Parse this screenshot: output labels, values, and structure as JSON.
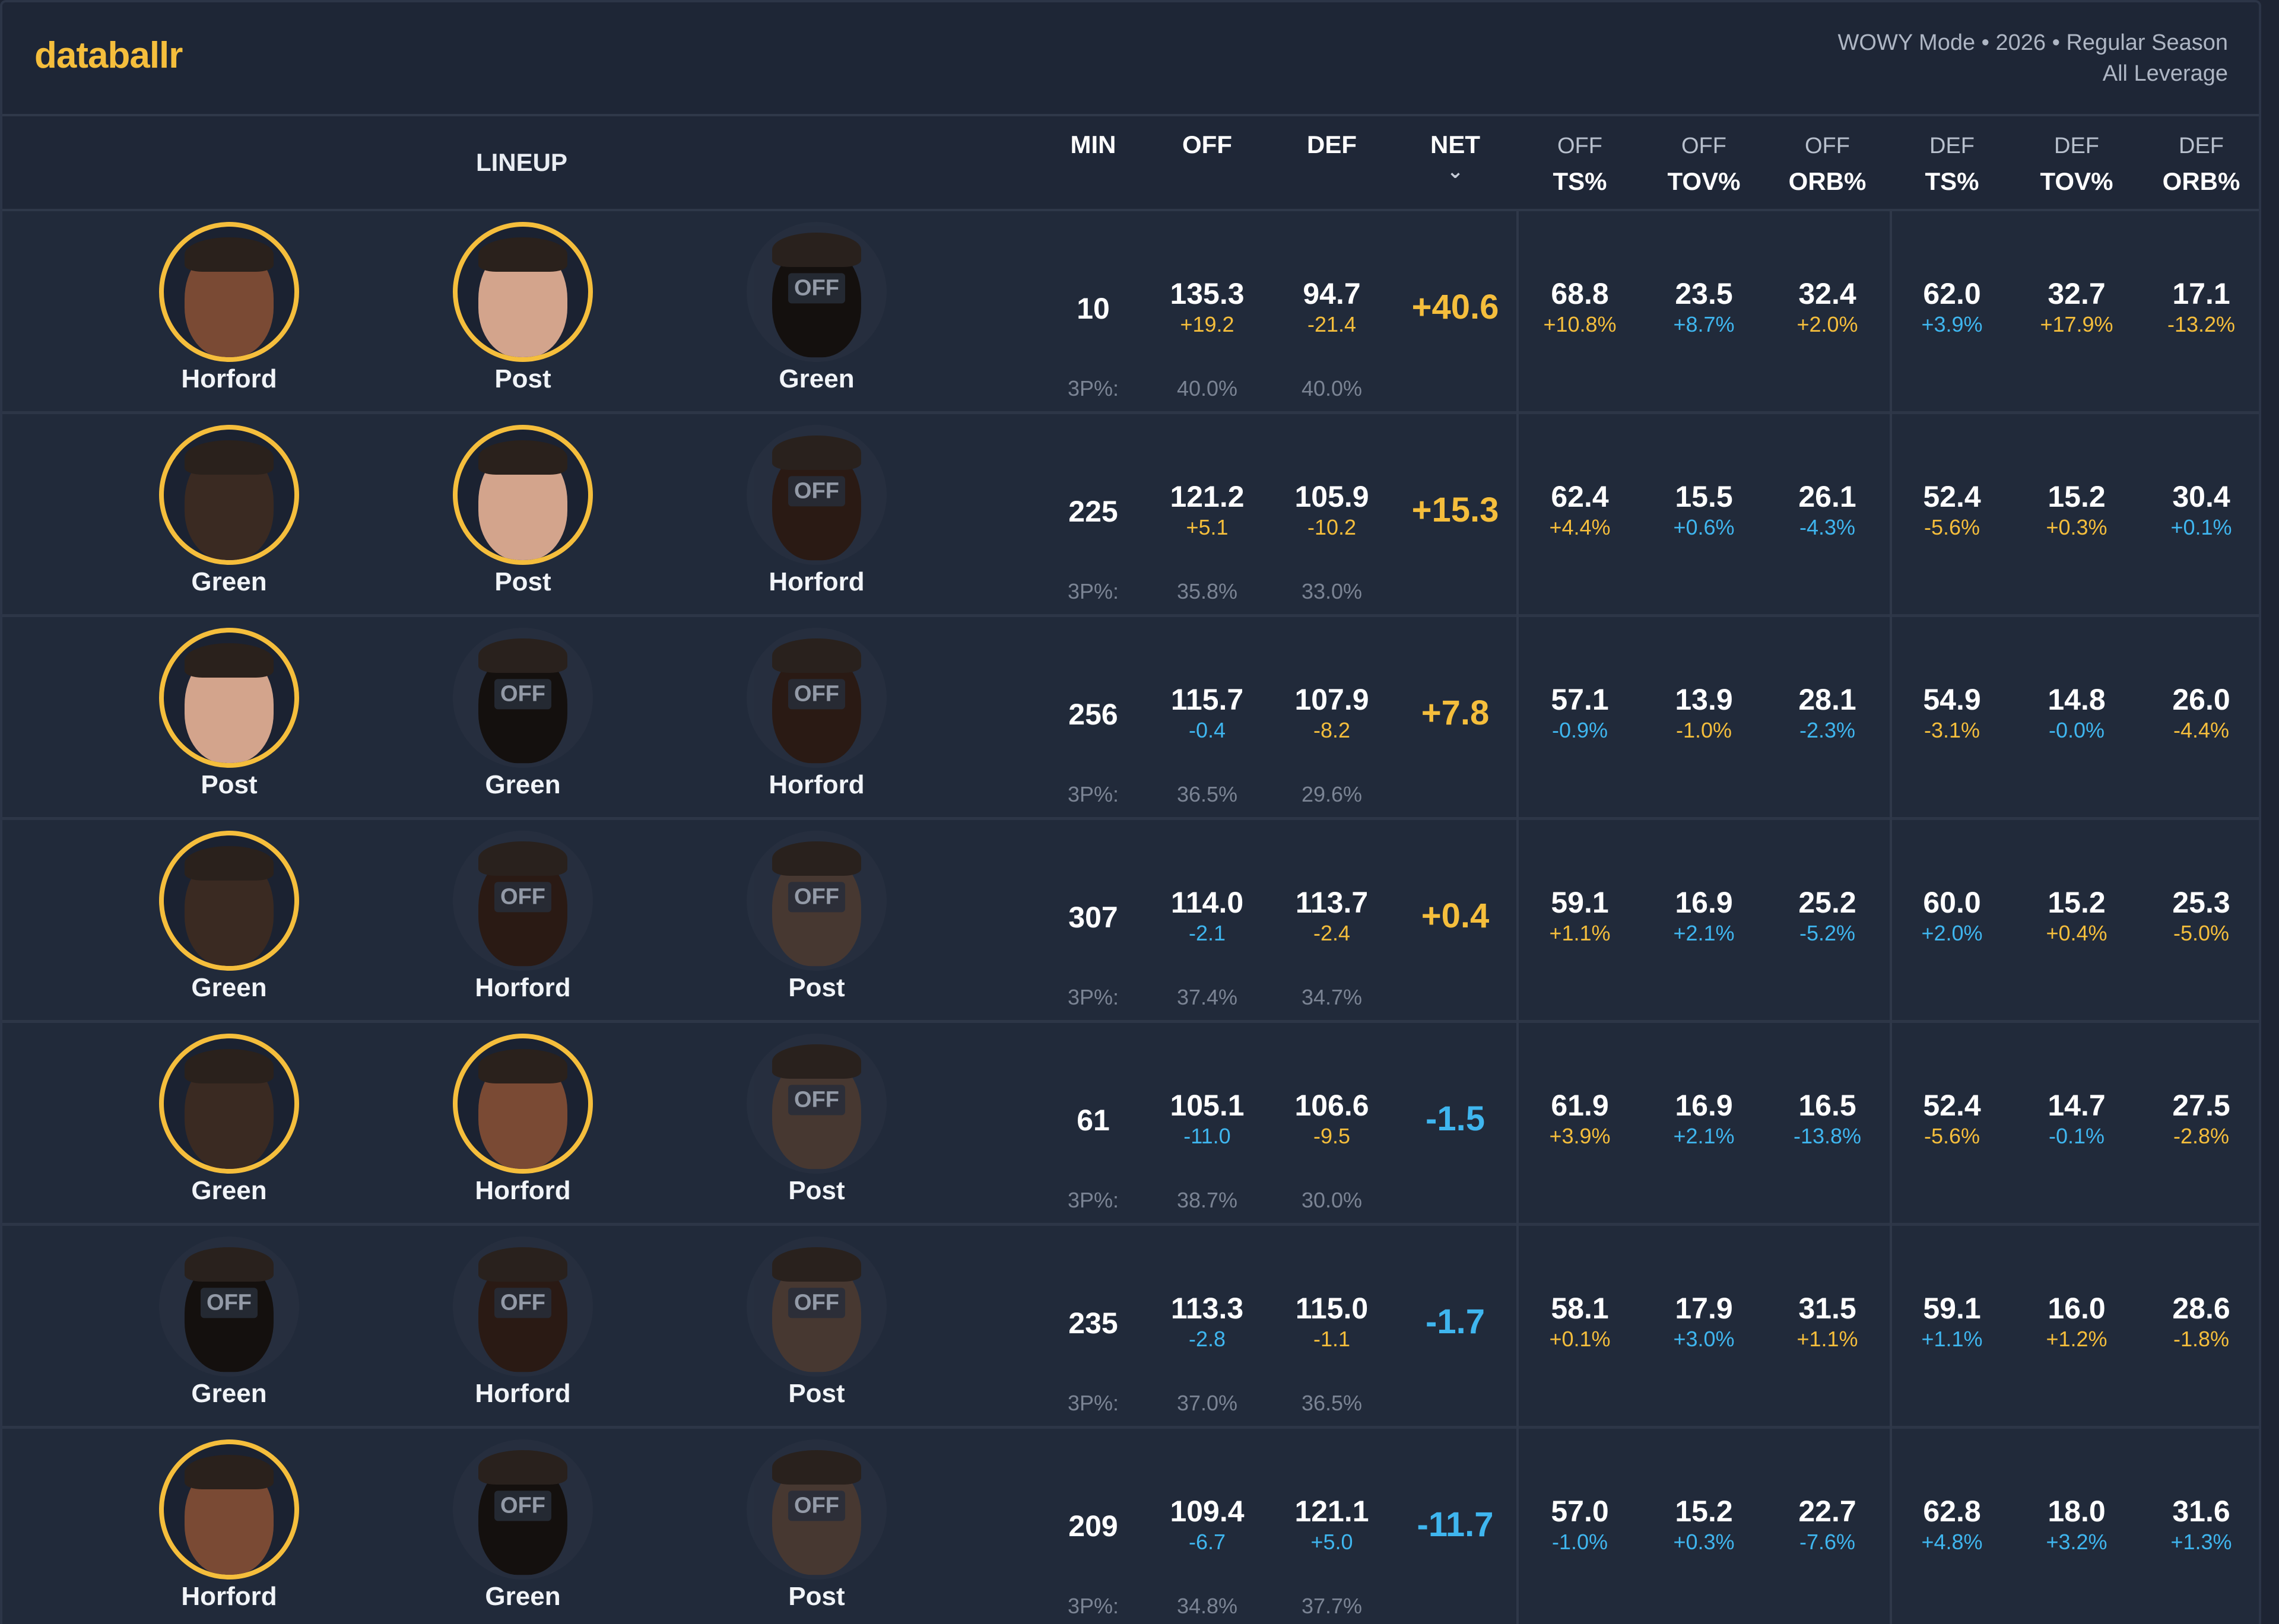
{
  "app": {
    "logo": "databallr",
    "mode_line1": "WOWY Mode • 2026 • Regular Season",
    "mode_line2": "All Leverage"
  },
  "colors": {
    "accent": "#f5be3c",
    "negative": "#3fb6ef",
    "background": "#202838"
  },
  "headers": {
    "lineup": "LINEUP",
    "min": "MIN",
    "off": "OFF",
    "def": "DEF",
    "net": "NET",
    "net_sort_icon": "chevron-down-icon",
    "off_ts_1": "OFF",
    "off_ts_2": "TS%",
    "off_tov_1": "OFF",
    "off_tov_2": "TOV%",
    "off_orb_1": "OFF",
    "off_orb_2": "ORB%",
    "def_ts_1": "DEF",
    "def_ts_2": "TS%",
    "def_tov_1": "DEF",
    "def_tov_2": "TOV%",
    "def_orb_1": "DEF",
    "def_orb_2": "ORB%"
  },
  "off_label": "OFF",
  "three_label": "3P%:",
  "rows": [
    {
      "players": [
        {
          "name": "Horford",
          "on": true,
          "skin": "mid"
        },
        {
          "name": "Post",
          "on": true,
          "skin": "light"
        },
        {
          "name": "Green",
          "on": false,
          "skin": "dark"
        }
      ],
      "min": "10",
      "off": "135.3",
      "off_chg": "+19.2",
      "off_chg_pos": true,
      "def": "94.7",
      "def_chg": "-21.4",
      "def_chg_pos": true,
      "off_3p": "40.0%",
      "def_3p": "40.0%",
      "net": "+40.6",
      "net_pos": true,
      "stats": [
        [
          "68.8",
          "+10.8%",
          true
        ],
        [
          "23.5",
          "+8.7%",
          false
        ],
        [
          "32.4",
          "+2.0%",
          true
        ],
        [
          "62.0",
          "+3.9%",
          false
        ],
        [
          "32.7",
          "+17.9%",
          true
        ],
        [
          "17.1",
          "-13.2%",
          true
        ]
      ]
    },
    {
      "players": [
        {
          "name": "Green",
          "on": true,
          "skin": "dark"
        },
        {
          "name": "Post",
          "on": true,
          "skin": "light"
        },
        {
          "name": "Horford",
          "on": false,
          "skin": "mid"
        }
      ],
      "min": "225",
      "off": "121.2",
      "off_chg": "+5.1",
      "off_chg_pos": true,
      "def": "105.9",
      "def_chg": "-10.2",
      "def_chg_pos": true,
      "off_3p": "35.8%",
      "def_3p": "33.0%",
      "net": "+15.3",
      "net_pos": true,
      "stats": [
        [
          "62.4",
          "+4.4%",
          true
        ],
        [
          "15.5",
          "+0.6%",
          false
        ],
        [
          "26.1",
          "-4.3%",
          false
        ],
        [
          "52.4",
          "-5.6%",
          true
        ],
        [
          "15.2",
          "+0.3%",
          true
        ],
        [
          "30.4",
          "+0.1%",
          false
        ]
      ]
    },
    {
      "players": [
        {
          "name": "Post",
          "on": true,
          "skin": "light"
        },
        {
          "name": "Green",
          "on": false,
          "skin": "dark"
        },
        {
          "name": "Horford",
          "on": false,
          "skin": "mid"
        }
      ],
      "min": "256",
      "off": "115.7",
      "off_chg": "-0.4",
      "off_chg_pos": false,
      "def": "107.9",
      "def_chg": "-8.2",
      "def_chg_pos": true,
      "off_3p": "36.5%",
      "def_3p": "29.6%",
      "net": "+7.8",
      "net_pos": true,
      "stats": [
        [
          "57.1",
          "-0.9%",
          false
        ],
        [
          "13.9",
          "-1.0%",
          true
        ],
        [
          "28.1",
          "-2.3%",
          false
        ],
        [
          "54.9",
          "-3.1%",
          true
        ],
        [
          "14.8",
          "-0.0%",
          false
        ],
        [
          "26.0",
          "-4.4%",
          true
        ]
      ]
    },
    {
      "players": [
        {
          "name": "Green",
          "on": true,
          "skin": "dark"
        },
        {
          "name": "Horford",
          "on": false,
          "skin": "mid"
        },
        {
          "name": "Post",
          "on": false,
          "skin": "light"
        }
      ],
      "min": "307",
      "off": "114.0",
      "off_chg": "-2.1",
      "off_chg_pos": false,
      "def": "113.7",
      "def_chg": "-2.4",
      "def_chg_pos": true,
      "off_3p": "37.4%",
      "def_3p": "34.7%",
      "net": "+0.4",
      "net_pos": true,
      "stats": [
        [
          "59.1",
          "+1.1%",
          true
        ],
        [
          "16.9",
          "+2.1%",
          false
        ],
        [
          "25.2",
          "-5.2%",
          false
        ],
        [
          "60.0",
          "+2.0%",
          false
        ],
        [
          "15.2",
          "+0.4%",
          true
        ],
        [
          "25.3",
          "-5.0%",
          true
        ]
      ]
    },
    {
      "players": [
        {
          "name": "Green",
          "on": true,
          "skin": "dark"
        },
        {
          "name": "Horford",
          "on": true,
          "skin": "mid"
        },
        {
          "name": "Post",
          "on": false,
          "skin": "light"
        }
      ],
      "min": "61",
      "off": "105.1",
      "off_chg": "-11.0",
      "off_chg_pos": false,
      "def": "106.6",
      "def_chg": "-9.5",
      "def_chg_pos": true,
      "off_3p": "38.7%",
      "def_3p": "30.0%",
      "net": "-1.5",
      "net_pos": false,
      "stats": [
        [
          "61.9",
          "+3.9%",
          true
        ],
        [
          "16.9",
          "+2.1%",
          false
        ],
        [
          "16.5",
          "-13.8%",
          false
        ],
        [
          "52.4",
          "-5.6%",
          true
        ],
        [
          "14.7",
          "-0.1%",
          false
        ],
        [
          "27.5",
          "-2.8%",
          true
        ]
      ]
    },
    {
      "players": [
        {
          "name": "Green",
          "on": false,
          "skin": "dark"
        },
        {
          "name": "Horford",
          "on": false,
          "skin": "mid"
        },
        {
          "name": "Post",
          "on": false,
          "skin": "light"
        }
      ],
      "min": "235",
      "off": "113.3",
      "off_chg": "-2.8",
      "off_chg_pos": false,
      "def": "115.0",
      "def_chg": "-1.1",
      "def_chg_pos": true,
      "off_3p": "37.0%",
      "def_3p": "36.5%",
      "net": "-1.7",
      "net_pos": false,
      "stats": [
        [
          "58.1",
          "+0.1%",
          true
        ],
        [
          "17.9",
          "+3.0%",
          false
        ],
        [
          "31.5",
          "+1.1%",
          true
        ],
        [
          "59.1",
          "+1.1%",
          false
        ],
        [
          "16.0",
          "+1.2%",
          true
        ],
        [
          "28.6",
          "-1.8%",
          true
        ]
      ]
    },
    {
      "players": [
        {
          "name": "Horford",
          "on": true,
          "skin": "mid"
        },
        {
          "name": "Green",
          "on": false,
          "skin": "dark"
        },
        {
          "name": "Post",
          "on": false,
          "skin": "light"
        }
      ],
      "min": "209",
      "off": "109.4",
      "off_chg": "-6.7",
      "off_chg_pos": false,
      "def": "121.1",
      "def_chg": "+5.0",
      "def_chg_pos": false,
      "off_3p": "34.8%",
      "def_3p": "37.7%",
      "net": "-11.7",
      "net_pos": false,
      "stats": [
        [
          "57.0",
          "-1.0%",
          false
        ],
        [
          "15.2",
          "+0.3%",
          false
        ],
        [
          "22.7",
          "-7.6%",
          false
        ],
        [
          "62.8",
          "+4.8%",
          false
        ],
        [
          "18.0",
          "+3.2%",
          false
        ],
        [
          "31.6",
          "+1.3%",
          false
        ]
      ]
    }
  ]
}
